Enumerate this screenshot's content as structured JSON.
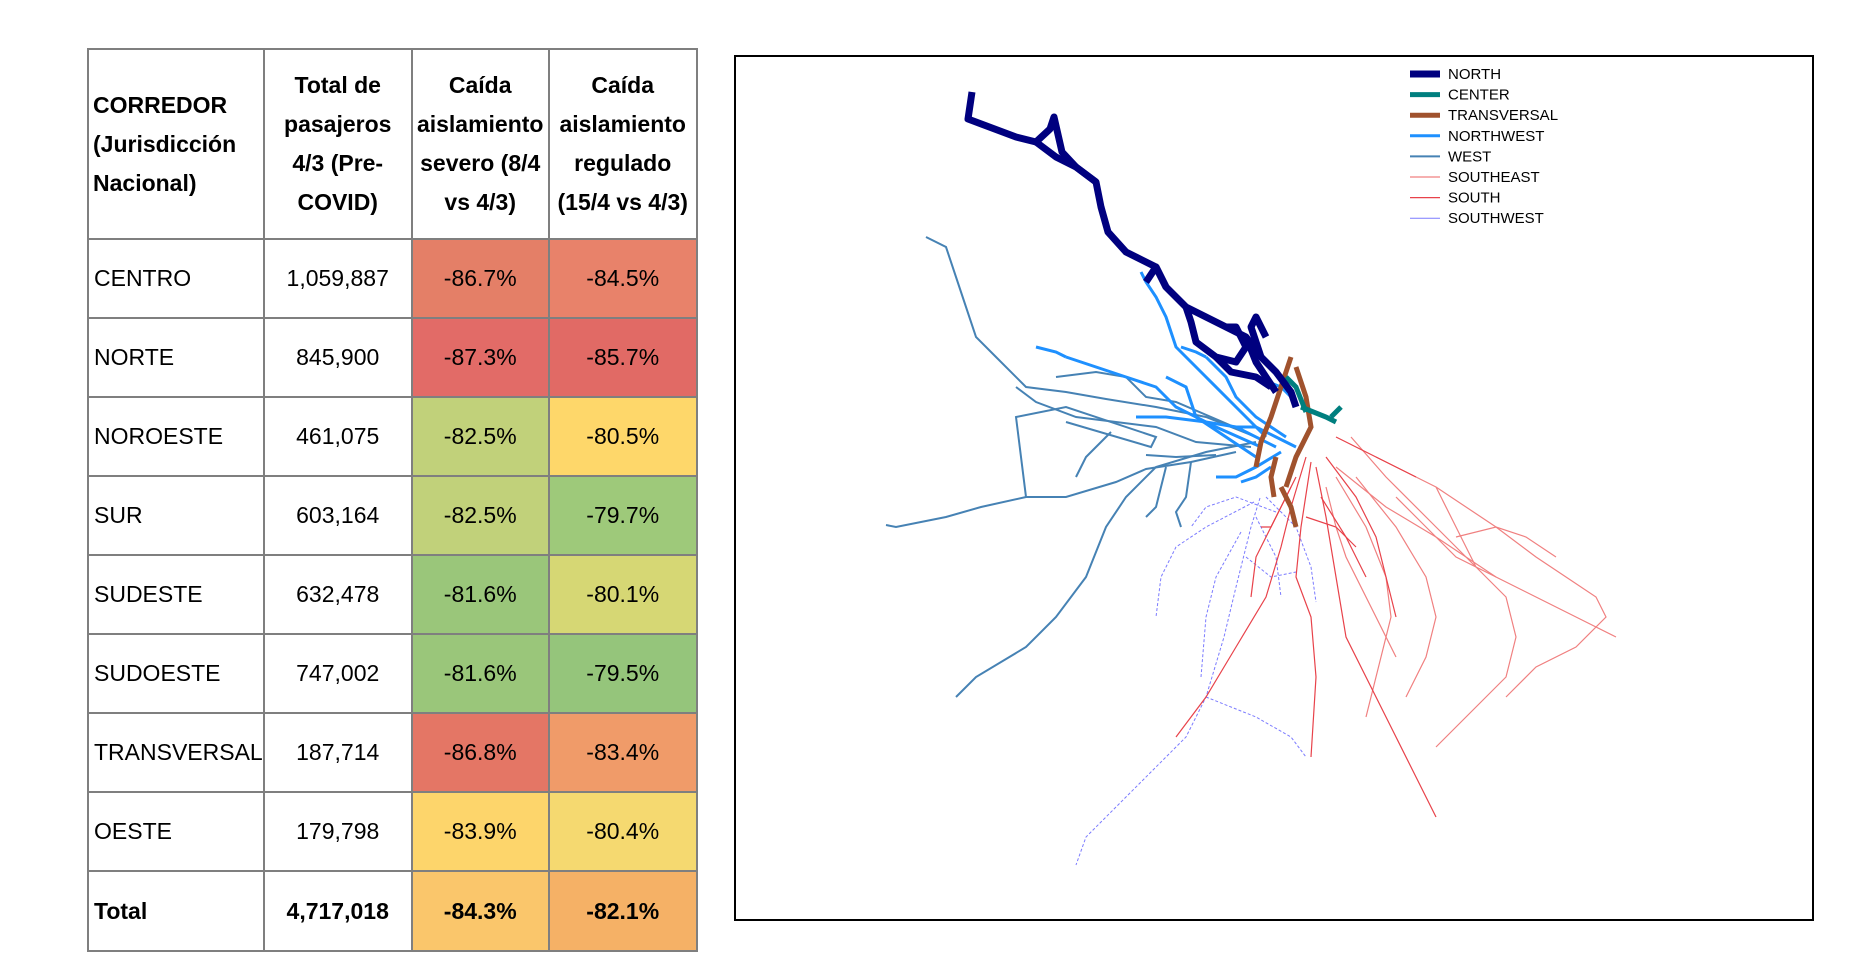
{
  "table": {
    "headers": [
      [
        "CORREDOR",
        "(Jurisdicción",
        "Nacional)"
      ],
      [
        "Total de",
        "pasajeros",
        "4/3 (Pre-",
        "COVID)"
      ],
      [
        "Caída",
        "aislamiento",
        "severo (8/4",
        "vs 4/3)"
      ],
      [
        "Caída",
        "aislamiento",
        "regulado",
        "(15/4 vs 4/3)"
      ]
    ],
    "rows": [
      {
        "name": "CENTRO",
        "total": "1,059,887",
        "severo": "-86.7%",
        "regulado": "-84.5%",
        "severo_color": "#e47f67",
        "regulado_color": "#e8826a"
      },
      {
        "name": "NORTE",
        "total": "845,900",
        "severo": "-87.3%",
        "regulado": "-85.7%",
        "severo_color": "#e26b67",
        "regulado_color": "#e16a65"
      },
      {
        "name": "NOROESTE",
        "total": "461,075",
        "severo": "-82.5%",
        "regulado": "-80.5%",
        "severo_color": "#c1d17a",
        "regulado_color": "#fed76a"
      },
      {
        "name": "SUR",
        "total": "603,164",
        "severo": "-82.5%",
        "regulado": "-79.7%",
        "severo_color": "#c1d17a",
        "regulado_color": "#9ec97a"
      },
      {
        "name": "SUDESTE",
        "total": "632,478",
        "severo": "-81.6%",
        "regulado": "-80.1%",
        "severo_color": "#9ac67a",
        "regulado_color": "#d6d774"
      },
      {
        "name": "SUDOESTE",
        "total": "747,002",
        "severo": "-81.6%",
        "regulado": "-79.5%",
        "severo_color": "#9ac67a",
        "regulado_color": "#95c57b"
      },
      {
        "name": "TRANSVERSAL",
        "total": "187,714",
        "severo": "-86.8%",
        "regulado": "-83.4%",
        "severo_color": "#e47665",
        "regulado_color": "#f09b69"
      },
      {
        "name": "OESTE",
        "total": "179,798",
        "severo": "-83.9%",
        "regulado": "-80.4%",
        "severo_color": "#fdd56b",
        "regulado_color": "#f5d970"
      }
    ],
    "total": {
      "name": "Total",
      "total": "4,717,018",
      "severo": "-84.3%",
      "regulado": "-82.1%",
      "severo_color": "#fac66b",
      "regulado_color": "#f5b166"
    }
  },
  "map": {
    "legend": [
      {
        "label": "NORTH",
        "color": "#00007f",
        "width": 7
      },
      {
        "label": "CENTER",
        "color": "#007f7f",
        "width": 5
      },
      {
        "label": "TRANSVERSAL",
        "color": "#a0522d",
        "width": 5
      },
      {
        "label": "NORTHWEST",
        "color": "#1e90ff",
        "width": 3
      },
      {
        "label": "WEST",
        "color": "#4682b4",
        "width": 2
      },
      {
        "label": "SOUTHEAST",
        "color": "#f08080",
        "width": 1.2
      },
      {
        "label": "SOUTH",
        "color": "#e8424a",
        "width": 1.2
      },
      {
        "label": "SOUTHWEST",
        "color": "#7b7bff",
        "width": 1
      }
    ]
  }
}
